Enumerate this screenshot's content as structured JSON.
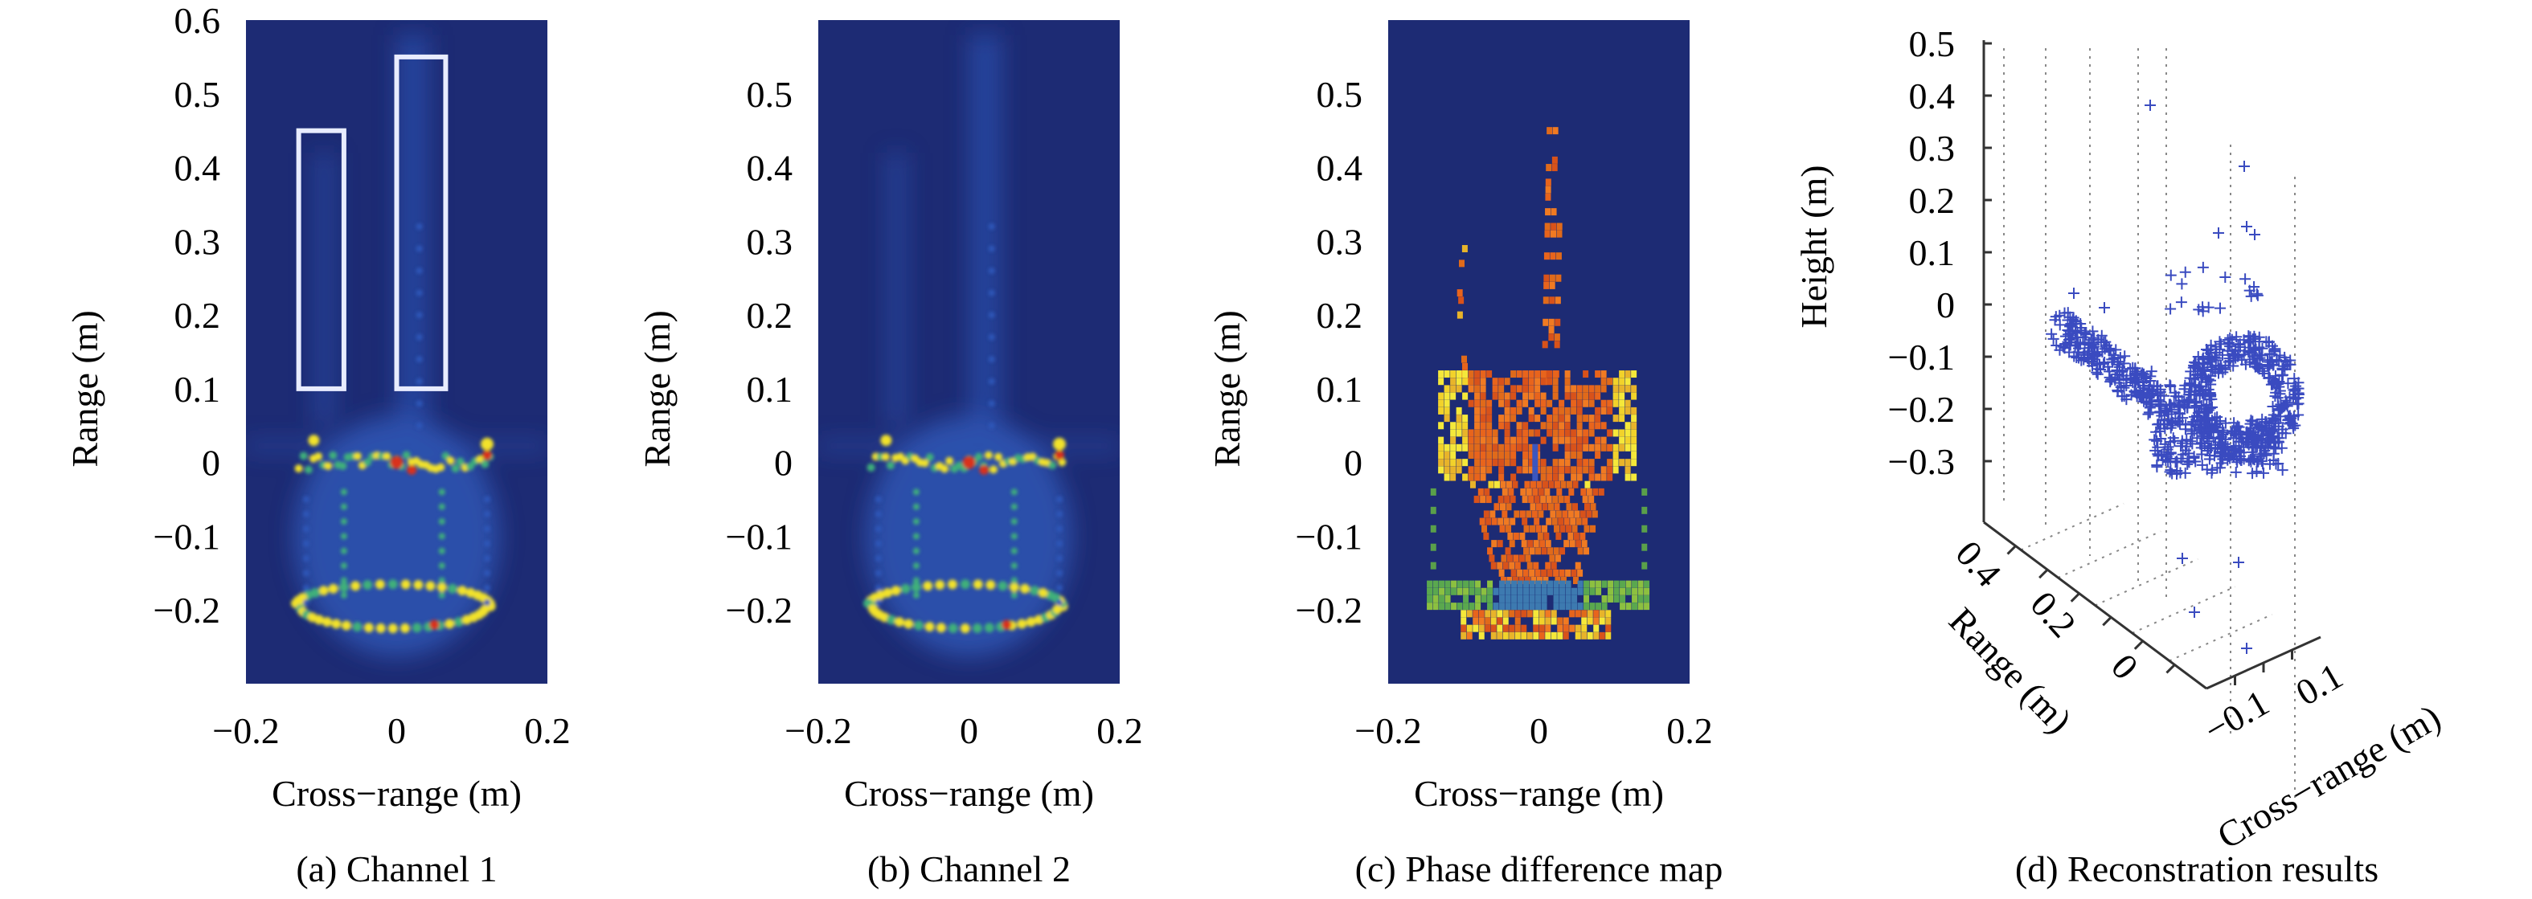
{
  "chart_data": [
    {
      "type": "heatmap",
      "caption": "(a) Channel 1",
      "xlabel": "Cross-range (m)",
      "ylabel": "Range (m)",
      "xlim": [
        -0.2,
        0.2
      ],
      "ylim": [
        -0.3,
        0.6
      ],
      "xticks": [
        "-0.2",
        "0",
        "0.2"
      ],
      "xtick_values": [
        -0.2,
        0,
        0.2
      ],
      "yticks": [
        "0.6",
        "0.5",
        "0.4",
        "0.3",
        "0.2",
        "0.1",
        "0",
        "-0.1",
        "-0.2"
      ],
      "ytick_values": [
        0.6,
        0.5,
        0.4,
        0.3,
        0.2,
        0.1,
        0,
        -0.1,
        -0.2
      ],
      "style": "amplitude",
      "annotations": [
        {
          "shape": "rectangle",
          "color": "#e8ecff",
          "x": [
            -0.13,
            -0.07
          ],
          "y": [
            0.1,
            0.45
          ]
        },
        {
          "shape": "rectangle",
          "color": "#e8ecff",
          "x": [
            0.0,
            0.065
          ],
          "y": [
            0.1,
            0.55
          ]
        }
      ]
    },
    {
      "type": "heatmap",
      "caption": "(b) Channel 2",
      "xlabel": "Cross-range (m)",
      "ylabel": "Range (m)",
      "xlim": [
        -0.2,
        0.2
      ],
      "ylim": [
        -0.3,
        0.6
      ],
      "xticks": [
        "-0.2",
        "0",
        "0.2"
      ],
      "xtick_values": [
        -0.2,
        0,
        0.2
      ],
      "yticks": [
        "0.5",
        "0.4",
        "0.3",
        "0.2",
        "0.1",
        "0",
        "-0.1",
        "-0.2"
      ],
      "ytick_values": [
        0.5,
        0.4,
        0.3,
        0.2,
        0.1,
        0,
        -0.1,
        -0.2
      ],
      "style": "amplitude",
      "annotations": []
    },
    {
      "type": "heatmap",
      "caption": "(c) Phase difference map",
      "xlabel": "Cross-range (m)",
      "ylabel": "Range (m)",
      "xlim": [
        -0.2,
        0.2
      ],
      "ylim": [
        -0.3,
        0.6
      ],
      "xticks": [
        "-0.2",
        "0",
        "0.2"
      ],
      "xtick_values": [
        -0.2,
        0,
        0.2
      ],
      "yticks": [
        "0.5",
        "0.4",
        "0.3",
        "0.2",
        "0.1",
        "0",
        "-0.1",
        "-0.2"
      ],
      "ytick_values": [
        0.5,
        0.4,
        0.3,
        0.2,
        0.1,
        0,
        -0.1,
        -0.2
      ],
      "style": "phase",
      "annotations": []
    },
    {
      "type": "scatter3d",
      "caption": "(d) Reconstration results",
      "zlabel": "Height (m)",
      "ylabel": "Range (m)",
      "xlabel": "Cross-range (m)",
      "zticks": [
        "0.5",
        "0.4",
        "0.3",
        "0.2",
        "0.1",
        "0",
        "-0.1",
        "-0.2",
        "-0.3"
      ],
      "ztick_values": [
        0.5,
        0.4,
        0.3,
        0.2,
        0.1,
        0,
        -0.1,
        -0.2,
        -0.3
      ],
      "yticks": [
        "0.4",
        "0.2",
        "0"
      ],
      "xticks": [
        "-0.1",
        "0.1"
      ],
      "marker": "+",
      "marker_color": "#3a4bc0",
      "grid": true
    }
  ],
  "colors": {
    "background": "#1d2b74",
    "low": "#2f57b8",
    "mid": "#3fb07a",
    "high": "#f2e22a",
    "peak": "#d9301c",
    "phase_orange": "#e8641c"
  }
}
